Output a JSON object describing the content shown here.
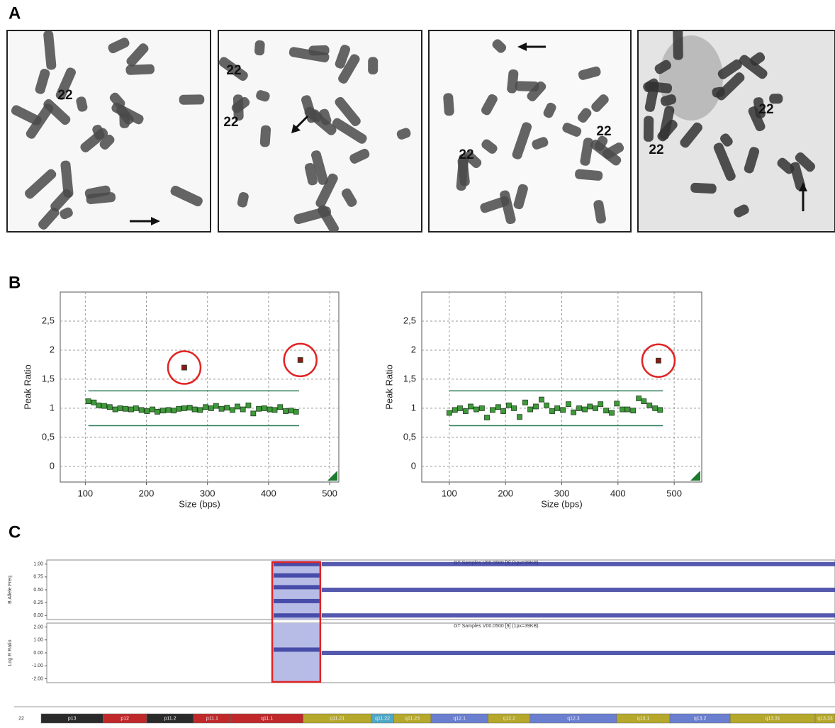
{
  "panel_labels": [
    "A",
    "B",
    "C"
  ],
  "panel_a": {
    "images": [
      {
        "labels": [
          "22"
        ]
      },
      {
        "labels": [
          "22",
          "22"
        ]
      },
      {
        "labels": [
          "22",
          "22"
        ]
      },
      {
        "labels": [
          "22",
          "22"
        ]
      }
    ]
  },
  "chart_data": [
    {
      "type": "scatter",
      "ylabel": "Peak Ratio",
      "xlabel": "Size (bps)",
      "xlim": [
        59,
        515
      ],
      "ylim": [
        -0.27,
        3
      ],
      "xticks": [
        100,
        200,
        300,
        400,
        500
      ],
      "yticks": [
        0,
        {
          "value": 0.5,
          "label": "0,5"
        },
        1,
        {
          "value": 1.5,
          "label": "1,5"
        },
        2,
        {
          "value": 2.5,
          "label": "2,5"
        }
      ],
      "grid": true,
      "reference_lines": [
        1.3,
        0.7
      ],
      "reference_xrange": [
        105,
        450
      ],
      "series": [
        {
          "color": "#3f9a3a",
          "x": [
            105,
            114,
            122,
            131,
            140,
            149,
            157,
            166,
            175,
            183,
            192,
            201,
            210,
            218,
            227,
            236,
            245,
            253,
            262,
            271,
            279,
            288,
            297,
            306,
            314,
            323,
            332,
            341,
            349,
            358,
            367,
            375,
            384,
            393,
            402,
            410,
            419,
            428,
            437,
            445
          ],
          "values": [
            1.12,
            1.1,
            1.05,
            1.04,
            1.02,
            0.98,
            1.0,
            0.99,
            0.98,
            1.0,
            0.97,
            0.95,
            0.98,
            0.94,
            0.96,
            0.97,
            0.96,
            0.99,
            1.0,
            1.01,
            0.98,
            0.97,
            1.02,
            1.0,
            1.04,
            0.99,
            1.01,
            0.97,
            1.03,
            0.98,
            1.05,
            0.91,
            0.99,
            1.0,
            0.98,
            0.97,
            1.02,
            0.95,
            0.96,
            0.94
          ]
        },
        {
          "color": "#8b1a1a",
          "highlight": "#e02424",
          "x": [
            262,
            452
          ],
          "values": [
            1.7,
            1.83
          ]
        }
      ]
    },
    {
      "type": "scatter",
      "ylabel": "Peak Ratio",
      "xlabel": "Size (bps)",
      "xlim": [
        51,
        549
      ],
      "ylim": [
        -0.27,
        3
      ],
      "xticks": [
        100,
        200,
        300,
        400,
        500
      ],
      "yticks": [
        0,
        {
          "value": 0.5,
          "label": "0,5"
        },
        1,
        {
          "value": 1.5,
          "label": "1,5"
        },
        2,
        {
          "value": 2.5,
          "label": "2,5"
        }
      ],
      "grid": true,
      "reference_lines": [
        1.3,
        0.7
      ],
      "reference_xrange": [
        100,
        480
      ],
      "series": [
        {
          "color": "#3f9a3a",
          "x": [
            100,
            110,
            119,
            129,
            138,
            148,
            158,
            167,
            177,
            187,
            196,
            206,
            215,
            225,
            235,
            244,
            254,
            264,
            273,
            283,
            292,
            302,
            312,
            321,
            331,
            341,
            350,
            360,
            369,
            379,
            389,
            398,
            408,
            417,
            427,
            437,
            446,
            456,
            466,
            475
          ],
          "values": [
            0.92,
            0.97,
            1.0,
            0.95,
            1.03,
            0.98,
            1.0,
            0.84,
            0.97,
            1.02,
            0.95,
            1.05,
            1.0,
            0.85,
            1.1,
            0.98,
            1.03,
            1.15,
            1.05,
            0.95,
            1.0,
            0.97,
            1.07,
            0.93,
            1.0,
            0.98,
            1.03,
            1.0,
            1.07,
            0.96,
            0.92,
            1.08,
            0.98,
            0.98,
            0.96,
            1.17,
            1.12,
            1.05,
            1.0,
            0.97
          ]
        },
        {
          "color": "#8b1a1a",
          "highlight": "#e02424",
          "x": [
            472
          ],
          "values": [
            1.82
          ]
        }
      ]
    },
    {
      "type": "segments",
      "title": "GT Samples V00.0500 [9] (1px=39KB)",
      "ylabel": "B Allele Freq",
      "xlim": [
        0,
        100
      ],
      "ylim": [
        -0.08,
        1.08
      ],
      "yticks": [
        {
          "value": 0,
          "label": "0.00"
        },
        {
          "value": 0.25,
          "label": "0.25"
        },
        {
          "value": 0.5,
          "label": "0.50"
        },
        {
          "value": 0.75,
          "label": "0.75"
        },
        {
          "value": 1,
          "label": "1.00"
        }
      ],
      "color": "#2b2f9a",
      "highlight_x": [
        28.6,
        34.7
      ],
      "segments": [
        {
          "x": [
            28.6,
            34.7
          ],
          "y": 1.0
        },
        {
          "x": [
            28.6,
            34.7
          ],
          "y": 0.78
        },
        {
          "x": [
            28.6,
            34.7
          ],
          "y": 0.55
        },
        {
          "x": [
            28.6,
            34.7
          ],
          "y": 0.28
        },
        {
          "x": [
            28.6,
            34.7
          ],
          "y": 0.0
        },
        {
          "x": [
            34.7,
            100
          ],
          "y": 1.0
        },
        {
          "x": [
            34.7,
            100
          ],
          "y": 0.5
        },
        {
          "x": [
            34.7,
            100
          ],
          "y": 0.0
        }
      ]
    },
    {
      "type": "segments",
      "title": "GT Samples V00.0500 [9] (1px=39KB)",
      "ylabel": "Log R Ratio",
      "xlim": [
        0,
        100
      ],
      "ylim": [
        -2.3,
        2.3
      ],
      "yticks": [
        {
          "value": -2,
          "label": "-2.00"
        },
        {
          "value": -1,
          "label": "-1.00"
        },
        {
          "value": 0,
          "label": "0.00"
        },
        {
          "value": 1,
          "label": "1.00"
        },
        {
          "value": 2,
          "label": "2.00"
        }
      ],
      "color": "#2b2f9a",
      "highlight_x": [
        28.6,
        34.7
      ],
      "segments": [
        {
          "x": [
            28.6,
            34.7
          ],
          "y": 0.25
        },
        {
          "x": [
            34.7,
            100
          ],
          "y": 0.0
        }
      ]
    },
    {
      "type": "ideogram",
      "chromosome": "22",
      "xlim": [
        0,
        100
      ],
      "bands": [
        {
          "name": "p13",
          "end": 7.8,
          "color": "#2a2a2a"
        },
        {
          "name": "p12",
          "end": 13.3,
          "color": "#c0282a"
        },
        {
          "name": "p11.2",
          "end": 19.2,
          "color": "#2a2a2a"
        },
        {
          "name": "p11.1",
          "end": 23.9,
          "color": "#c0282a"
        },
        {
          "name": "q11.1",
          "end": 33,
          "color": "#c0282a"
        },
        {
          "name": "q11.21",
          "end": 41.6,
          "color": "#b5a82a"
        },
        {
          "name": "q11.22",
          "end": 44.4,
          "color": "#4fa8c8"
        },
        {
          "name": "q11.23",
          "end": 49.1,
          "color": "#b5a82a"
        },
        {
          "name": "q12.1",
          "end": 56.3,
          "color": "#6a7fd0"
        },
        {
          "name": "q12.2",
          "end": 61.6,
          "color": "#b5a82a"
        },
        {
          "name": "q12.3",
          "end": 72.5,
          "color": "#6a7fd0"
        },
        {
          "name": "q13.1",
          "end": 79.2,
          "color": "#b5a82a"
        },
        {
          "name": "q13.2",
          "end": 86.8,
          "color": "#6a7fd0"
        },
        {
          "name": "q13.31",
          "end": 97.5,
          "color": "#b5a82a"
        },
        {
          "name": "q13.33",
          "end": 100,
          "color": "#b5a82a"
        }
      ]
    }
  ]
}
